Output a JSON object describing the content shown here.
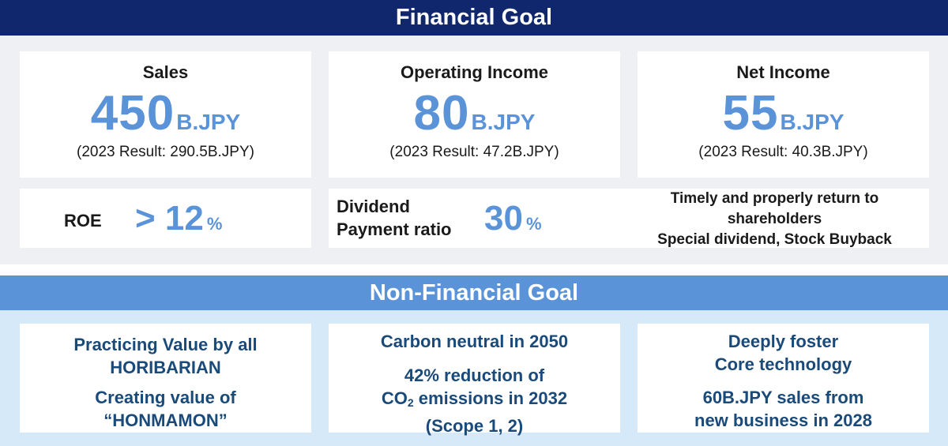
{
  "financial": {
    "heading": "Financial Goal",
    "sales": {
      "title": "Sales",
      "value": "450",
      "unit": "B.JPY",
      "result": "(2023 Result: 290.5B.JPY)"
    },
    "operating_income": {
      "title": "Operating Income",
      "value": "80",
      "unit": "B.JPY",
      "result": "(2023 Result: 47.2B.JPY)"
    },
    "net_income": {
      "title": "Net Income",
      "value": "55",
      "unit": "B.JPY",
      "result": "(2023 Result: 40.3B.JPY)"
    },
    "roe": {
      "label": "ROE",
      "value": "> 12",
      "unit": "%"
    },
    "dividend": {
      "label_line1": "Dividend",
      "label_line2": "Payment ratio",
      "value": "30",
      "unit": "%"
    },
    "shareholder_return": {
      "line1": "Timely and properly return to",
      "line2": "shareholders",
      "line3": "Special dividend, Stock Buyback"
    }
  },
  "non_financial": {
    "heading": "Non-Financial Goal",
    "value": {
      "line1": "Practicing Value by all",
      "line2": "HORIBARIAN",
      "line3": "Creating value of",
      "line4": "“HONMAMON”"
    },
    "carbon": {
      "line1": "Carbon neutral in 2050",
      "line2": "42% reduction of",
      "co2_prefix": "CO",
      "co2_sub": "2",
      "co2_suffix": " emissions in 2032",
      "line4": "(Scope 1, 2)"
    },
    "technology": {
      "line1": "Deeply foster",
      "line2": "Core technology",
      "line3": "60B.JPY sales from",
      "line4": "new business in 2028"
    }
  },
  "colors": {
    "financial_band": "#10276d",
    "nonfinancial_band": "#5a93d8",
    "accent_value": "#5a93d8",
    "nonfinancial_text": "#1a4a7a"
  }
}
